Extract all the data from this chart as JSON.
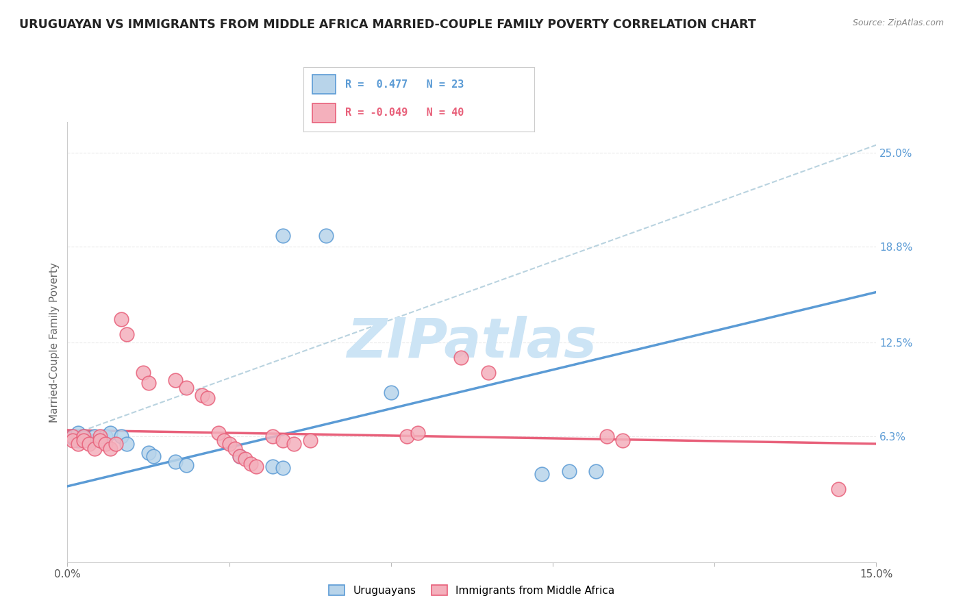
{
  "title": "URUGUAYAN VS IMMIGRANTS FROM MIDDLE AFRICA MARRIED-COUPLE FAMILY POVERTY CORRELATION CHART",
  "source": "Source: ZipAtlas.com",
  "ylabel": "Married-Couple Family Poverty",
  "xlim": [
    0.0,
    0.15
  ],
  "ylim": [
    -0.02,
    0.27
  ],
  "ytick_right": [
    0.063,
    0.125,
    0.188,
    0.25
  ],
  "ytick_right_labels": [
    "6.3%",
    "12.5%",
    "18.8%",
    "25.0%"
  ],
  "legend_color1": "#b8d4ea",
  "legend_color2": "#f4b0bc",
  "watermark": "ZIPatlas",
  "watermark_color": "#cce4f5",
  "blue_color": "#5b9bd5",
  "pink_color": "#e8607a",
  "dashed_line_color": "#a8c8d8",
  "blue_line_x": [
    0.0,
    0.15
  ],
  "blue_line_y": [
    0.03,
    0.158
  ],
  "pink_line_x": [
    0.0,
    0.15
  ],
  "pink_line_y": [
    0.067,
    0.058
  ],
  "dashed_line_x": [
    0.0,
    0.15
  ],
  "dashed_line_y": [
    0.063,
    0.255
  ],
  "uruguayan_points": [
    [
      0.001,
      0.063
    ],
    [
      0.001,
      0.062
    ],
    [
      0.002,
      0.065
    ],
    [
      0.002,
      0.06
    ],
    [
      0.003,
      0.063
    ],
    [
      0.003,
      0.062
    ],
    [
      0.004,
      0.06
    ],
    [
      0.005,
      0.063
    ],
    [
      0.006,
      0.06
    ],
    [
      0.007,
      0.063
    ],
    [
      0.008,
      0.065
    ],
    [
      0.01,
      0.063
    ],
    [
      0.011,
      0.058
    ],
    [
      0.015,
      0.052
    ],
    [
      0.016,
      0.05
    ],
    [
      0.02,
      0.046
    ],
    [
      0.022,
      0.044
    ],
    [
      0.032,
      0.05
    ],
    [
      0.038,
      0.043
    ],
    [
      0.04,
      0.042
    ],
    [
      0.04,
      0.195
    ],
    [
      0.048,
      0.195
    ],
    [
      0.06,
      0.092
    ],
    [
      0.088,
      0.038
    ],
    [
      0.093,
      0.04
    ],
    [
      0.098,
      0.04
    ]
  ],
  "immigrant_points": [
    [
      0.001,
      0.063
    ],
    [
      0.001,
      0.06
    ],
    [
      0.002,
      0.058
    ],
    [
      0.003,
      0.063
    ],
    [
      0.003,
      0.06
    ],
    [
      0.004,
      0.058
    ],
    [
      0.005,
      0.055
    ],
    [
      0.006,
      0.063
    ],
    [
      0.006,
      0.06
    ],
    [
      0.007,
      0.058
    ],
    [
      0.008,
      0.055
    ],
    [
      0.009,
      0.058
    ],
    [
      0.01,
      0.14
    ],
    [
      0.011,
      0.13
    ],
    [
      0.014,
      0.105
    ],
    [
      0.015,
      0.098
    ],
    [
      0.02,
      0.1
    ],
    [
      0.022,
      0.095
    ],
    [
      0.025,
      0.09
    ],
    [
      0.026,
      0.088
    ],
    [
      0.028,
      0.065
    ],
    [
      0.029,
      0.06
    ],
    [
      0.03,
      0.058
    ],
    [
      0.031,
      0.055
    ],
    [
      0.032,
      0.05
    ],
    [
      0.033,
      0.048
    ],
    [
      0.034,
      0.045
    ],
    [
      0.035,
      0.043
    ],
    [
      0.038,
      0.063
    ],
    [
      0.04,
      0.06
    ],
    [
      0.042,
      0.058
    ],
    [
      0.045,
      0.06
    ],
    [
      0.063,
      0.063
    ],
    [
      0.065,
      0.065
    ],
    [
      0.073,
      0.115
    ],
    [
      0.078,
      0.105
    ],
    [
      0.1,
      0.063
    ],
    [
      0.103,
      0.06
    ],
    [
      0.143,
      0.028
    ]
  ],
  "background_color": "#ffffff",
  "grid_color": "#e8e8e8"
}
